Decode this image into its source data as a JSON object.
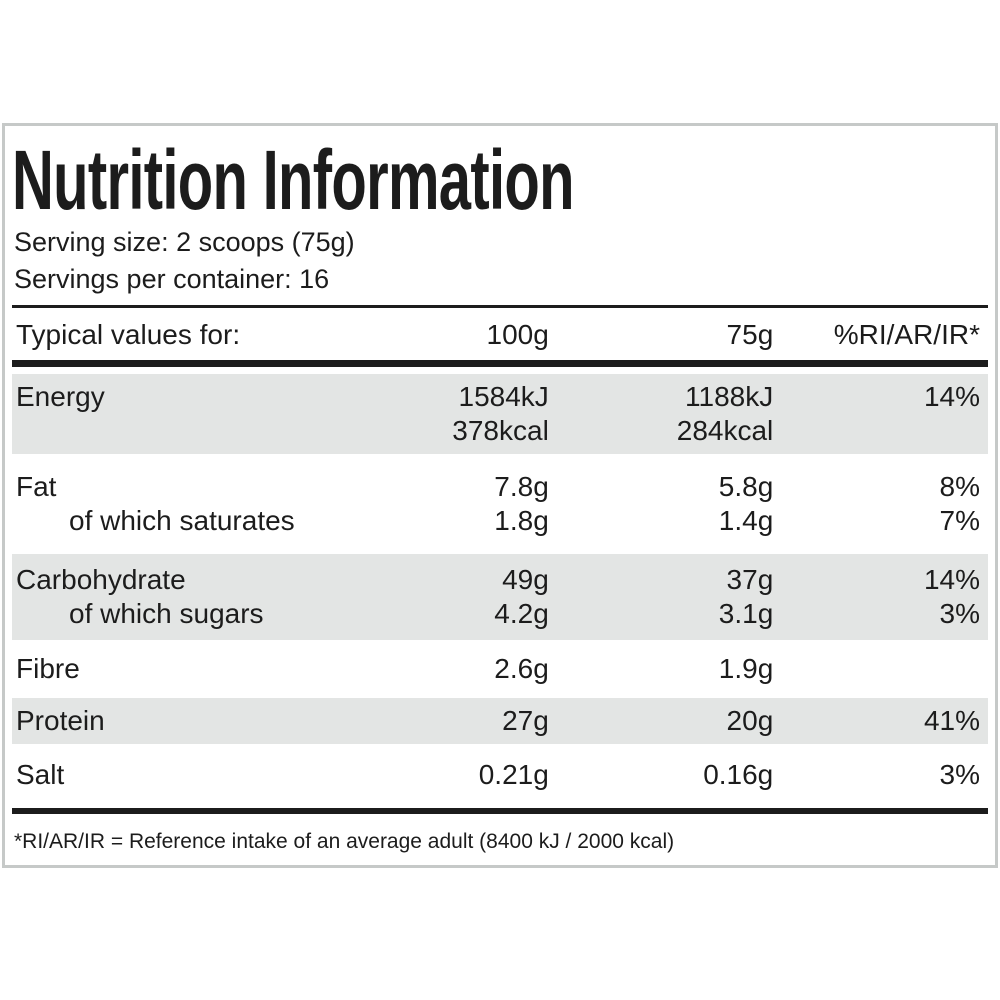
{
  "label": {
    "title": "Nutrition Information",
    "serving_size": "Serving size: 2 scoops (75g)",
    "servings_per_container": "Servings per container: 16",
    "footnote": "*RI/AR/IR = Reference intake of an average adult (8400 kJ / 2000 kcal)"
  },
  "table": {
    "header": {
      "label": "Typical values for:",
      "col_100g": "100g",
      "col_75g": "75g",
      "col_ri": "%RI/AR/IR*"
    },
    "rows": [
      {
        "shaded": true,
        "lines": [
          {
            "label": "Energy",
            "indent": false,
            "v100": "1584kJ",
            "v75": "1188kJ",
            "ri": "14%"
          },
          {
            "label": "",
            "indent": false,
            "v100": "378kcal",
            "v75": "284kcal",
            "ri": ""
          }
        ]
      },
      {
        "shaded": false,
        "lines": [
          {
            "label": "Fat",
            "indent": false,
            "v100": "7.8g",
            "v75": "5.8g",
            "ri": "8%"
          },
          {
            "label": "of which saturates",
            "indent": true,
            "v100": "1.8g",
            "v75": "1.4g",
            "ri": "7%"
          }
        ]
      },
      {
        "shaded": true,
        "lines": [
          {
            "label": "Carbohydrate",
            "indent": false,
            "v100": "49g",
            "v75": "37g",
            "ri": "14%"
          },
          {
            "label": "of which sugars",
            "indent": true,
            "v100": "4.2g",
            "v75": "3.1g",
            "ri": "3%"
          }
        ]
      },
      {
        "shaded": false,
        "lines": [
          {
            "label": "Fibre",
            "indent": false,
            "v100": "2.6g",
            "v75": "1.9g",
            "ri": ""
          }
        ]
      },
      {
        "shaded": true,
        "lines": [
          {
            "label": "Protein",
            "indent": false,
            "v100": "27g",
            "v75": "20g",
            "ri": "41%"
          }
        ]
      },
      {
        "shaded": false,
        "lines": [
          {
            "label": "Salt",
            "indent": false,
            "v100": "0.21g",
            "v75": "0.16g",
            "ri": "3%"
          }
        ]
      }
    ]
  },
  "colors": {
    "text": "#1c1c1c",
    "row_shade": "#e3e5e4",
    "card_border": "#c6c9c8",
    "background": "#ffffff"
  }
}
